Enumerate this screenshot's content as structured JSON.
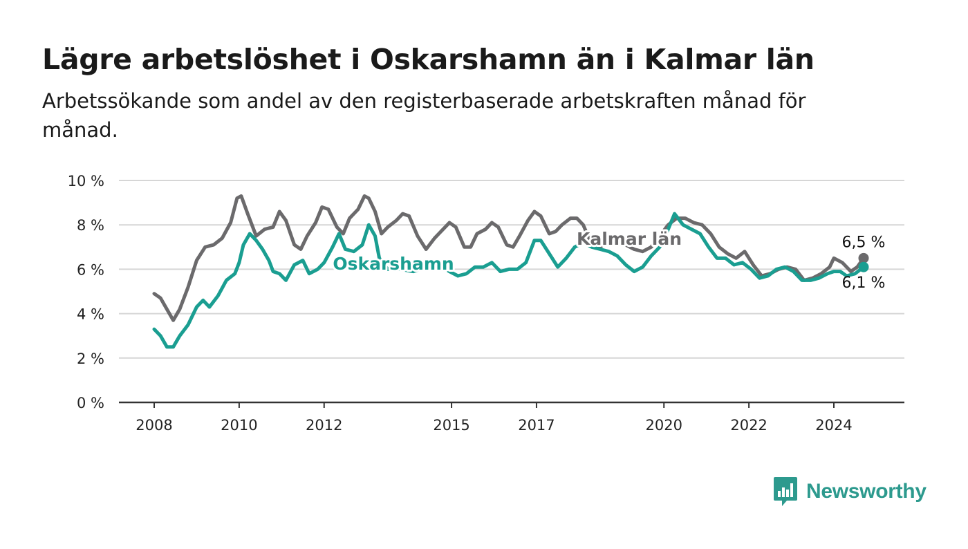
{
  "header": {
    "title": "Lägre arbetslöshet i Oskarshamn än i Kalmar län",
    "subtitle": "Arbetssökande som andel av den registerbaserade arbetskraften månad för månad."
  },
  "brand": {
    "name": "Newsworthy",
    "icon": "chart-bubble-icon",
    "color": "#2d9a8e"
  },
  "chart_data": {
    "type": "line",
    "title": "Lägre arbetslöshet i Oskarshamn än i Kalmar län",
    "subtitle": "Arbetssökande som andel av den registerbaserade arbetskraften månad för månad.",
    "xlabel": "",
    "ylabel": "",
    "x_range": [
      2008,
      2024.7
    ],
    "ylim": [
      0,
      10
    ],
    "y_ticks": [
      0,
      2,
      4,
      6,
      8,
      10
    ],
    "y_tick_labels": [
      "0 %",
      "2 %",
      "4 %",
      "6 %",
      "8 %",
      "10 %"
    ],
    "x_ticks": [
      2008,
      2010,
      2012,
      2015,
      2017,
      2020,
      2022,
      2024
    ],
    "x_tick_labels": [
      "2008",
      "2010",
      "2012",
      "2015",
      "2017",
      "2020",
      "2022",
      "2024"
    ],
    "grid": true,
    "legend": "direct labels on lines",
    "series": [
      {
        "name": "Kalmar län",
        "color": "#6b6a6c",
        "end_label": "6,5 %",
        "points": [
          [
            2008.0,
            4.9
          ],
          [
            2008.15,
            4.7
          ],
          [
            2008.3,
            4.2
          ],
          [
            2008.45,
            3.7
          ],
          [
            2008.6,
            4.2
          ],
          [
            2008.8,
            5.2
          ],
          [
            2009.0,
            6.4
          ],
          [
            2009.2,
            7.0
          ],
          [
            2009.4,
            7.1
          ],
          [
            2009.6,
            7.4
          ],
          [
            2009.8,
            8.1
          ],
          [
            2009.95,
            9.2
          ],
          [
            2010.05,
            9.3
          ],
          [
            2010.2,
            8.5
          ],
          [
            2010.4,
            7.5
          ],
          [
            2010.6,
            7.8
          ],
          [
            2010.8,
            7.9
          ],
          [
            2010.95,
            8.6
          ],
          [
            2011.1,
            8.2
          ],
          [
            2011.3,
            7.1
          ],
          [
            2011.45,
            6.9
          ],
          [
            2011.6,
            7.5
          ],
          [
            2011.8,
            8.1
          ],
          [
            2011.95,
            8.8
          ],
          [
            2012.1,
            8.7
          ],
          [
            2012.3,
            7.9
          ],
          [
            2012.45,
            7.6
          ],
          [
            2012.6,
            8.3
          ],
          [
            2012.8,
            8.7
          ],
          [
            2012.95,
            9.3
          ],
          [
            2013.05,
            9.2
          ],
          [
            2013.2,
            8.6
          ],
          [
            2013.35,
            7.6
          ],
          [
            2013.5,
            7.9
          ],
          [
            2013.7,
            8.2
          ],
          [
            2013.85,
            8.5
          ],
          [
            2014.0,
            8.4
          ],
          [
            2014.2,
            7.5
          ],
          [
            2014.4,
            6.9
          ],
          [
            2014.6,
            7.4
          ],
          [
            2014.8,
            7.8
          ],
          [
            2014.95,
            8.1
          ],
          [
            2015.1,
            7.9
          ],
          [
            2015.3,
            7.0
          ],
          [
            2015.45,
            7.0
          ],
          [
            2015.6,
            7.6
          ],
          [
            2015.8,
            7.8
          ],
          [
            2015.95,
            8.1
          ],
          [
            2016.1,
            7.9
          ],
          [
            2016.3,
            7.1
          ],
          [
            2016.45,
            7.0
          ],
          [
            2016.6,
            7.5
          ],
          [
            2016.8,
            8.2
          ],
          [
            2016.95,
            8.6
          ],
          [
            2017.1,
            8.4
          ],
          [
            2017.3,
            7.6
          ],
          [
            2017.45,
            7.7
          ],
          [
            2017.6,
            8.0
          ],
          [
            2017.8,
            8.3
          ],
          [
            2017.95,
            8.3
          ],
          [
            2018.1,
            8.0
          ],
          [
            2018.3,
            7.1
          ],
          [
            2018.5,
            7.0
          ],
          [
            2018.7,
            7.3
          ],
          [
            2018.9,
            7.4
          ],
          [
            2019.1,
            7.1
          ],
          [
            2019.3,
            6.9
          ],
          [
            2019.5,
            6.8
          ],
          [
            2019.7,
            7.0
          ],
          [
            2019.9,
            7.5
          ],
          [
            2020.1,
            8.0
          ],
          [
            2020.3,
            8.3
          ],
          [
            2020.5,
            8.3
          ],
          [
            2020.7,
            8.1
          ],
          [
            2020.9,
            8.0
          ],
          [
            2021.1,
            7.6
          ],
          [
            2021.3,
            7.0
          ],
          [
            2021.5,
            6.7
          ],
          [
            2021.7,
            6.5
          ],
          [
            2021.9,
            6.8
          ],
          [
            2022.1,
            6.2
          ],
          [
            2022.3,
            5.7
          ],
          [
            2022.5,
            5.8
          ],
          [
            2022.7,
            6.0
          ],
          [
            2022.9,
            6.1
          ],
          [
            2023.1,
            6.0
          ],
          [
            2023.3,
            5.5
          ],
          [
            2023.5,
            5.6
          ],
          [
            2023.7,
            5.8
          ],
          [
            2023.9,
            6.1
          ],
          [
            2024.0,
            6.5
          ],
          [
            2024.2,
            6.3
          ],
          [
            2024.4,
            5.9
          ],
          [
            2024.55,
            6.1
          ],
          [
            2024.7,
            6.5
          ]
        ]
      },
      {
        "name": "Oskarshamn",
        "color": "#1a9e91",
        "end_label": "6,1 %",
        "points": [
          [
            2008.0,
            3.3
          ],
          [
            2008.15,
            3.0
          ],
          [
            2008.3,
            2.5
          ],
          [
            2008.45,
            2.5
          ],
          [
            2008.6,
            3.0
          ],
          [
            2008.8,
            3.5
          ],
          [
            2009.0,
            4.3
          ],
          [
            2009.15,
            4.6
          ],
          [
            2009.3,
            4.3
          ],
          [
            2009.5,
            4.8
          ],
          [
            2009.7,
            5.5
          ],
          [
            2009.9,
            5.8
          ],
          [
            2010.0,
            6.3
          ],
          [
            2010.1,
            7.1
          ],
          [
            2010.25,
            7.6
          ],
          [
            2010.4,
            7.3
          ],
          [
            2010.55,
            6.9
          ],
          [
            2010.7,
            6.4
          ],
          [
            2010.8,
            5.9
          ],
          [
            2010.95,
            5.8
          ],
          [
            2011.1,
            5.5
          ],
          [
            2011.3,
            6.2
          ],
          [
            2011.5,
            6.4
          ],
          [
            2011.65,
            5.8
          ],
          [
            2011.85,
            6.0
          ],
          [
            2012.0,
            6.3
          ],
          [
            2012.2,
            7.0
          ],
          [
            2012.35,
            7.6
          ],
          [
            2012.5,
            6.9
          ],
          [
            2012.7,
            6.8
          ],
          [
            2012.9,
            7.1
          ],
          [
            2013.05,
            8.0
          ],
          [
            2013.2,
            7.5
          ],
          [
            2013.3,
            6.5
          ],
          [
            2013.5,
            6.0
          ],
          [
            2013.8,
            6.0
          ],
          [
            2014.1,
            5.9
          ],
          [
            2014.4,
            6.1
          ],
          [
            2014.7,
            6.2
          ],
          [
            2014.95,
            5.9
          ],
          [
            2015.15,
            5.7
          ],
          [
            2015.35,
            5.8
          ],
          [
            2015.55,
            6.1
          ],
          [
            2015.75,
            6.1
          ],
          [
            2015.95,
            6.3
          ],
          [
            2016.15,
            5.9
          ],
          [
            2016.35,
            6.0
          ],
          [
            2016.55,
            6.0
          ],
          [
            2016.75,
            6.3
          ],
          [
            2016.95,
            7.3
          ],
          [
            2017.1,
            7.3
          ],
          [
            2017.3,
            6.7
          ],
          [
            2017.5,
            6.1
          ],
          [
            2017.7,
            6.5
          ],
          [
            2017.9,
            7.0
          ],
          [
            2018.1,
            7.2
          ],
          [
            2018.3,
            7.0
          ],
          [
            2018.5,
            6.9
          ],
          [
            2018.7,
            6.8
          ],
          [
            2018.9,
            6.6
          ],
          [
            2019.1,
            6.2
          ],
          [
            2019.3,
            5.9
          ],
          [
            2019.5,
            6.1
          ],
          [
            2019.7,
            6.6
          ],
          [
            2019.9,
            7.0
          ],
          [
            2020.1,
            7.8
          ],
          [
            2020.25,
            8.5
          ],
          [
            2020.45,
            8.0
          ],
          [
            2020.65,
            7.8
          ],
          [
            2020.85,
            7.6
          ],
          [
            2021.05,
            7.0
          ],
          [
            2021.25,
            6.5
          ],
          [
            2021.45,
            6.5
          ],
          [
            2021.65,
            6.2
          ],
          [
            2021.85,
            6.3
          ],
          [
            2022.05,
            6.0
          ],
          [
            2022.25,
            5.6
          ],
          [
            2022.45,
            5.7
          ],
          [
            2022.65,
            6.0
          ],
          [
            2022.85,
            6.1
          ],
          [
            2023.05,
            5.9
          ],
          [
            2023.25,
            5.5
          ],
          [
            2023.45,
            5.5
          ],
          [
            2023.65,
            5.6
          ],
          [
            2023.85,
            5.8
          ],
          [
            2024.0,
            5.9
          ],
          [
            2024.15,
            5.9
          ],
          [
            2024.3,
            5.7
          ],
          [
            2024.5,
            5.8
          ],
          [
            2024.7,
            6.1
          ]
        ]
      }
    ]
  }
}
